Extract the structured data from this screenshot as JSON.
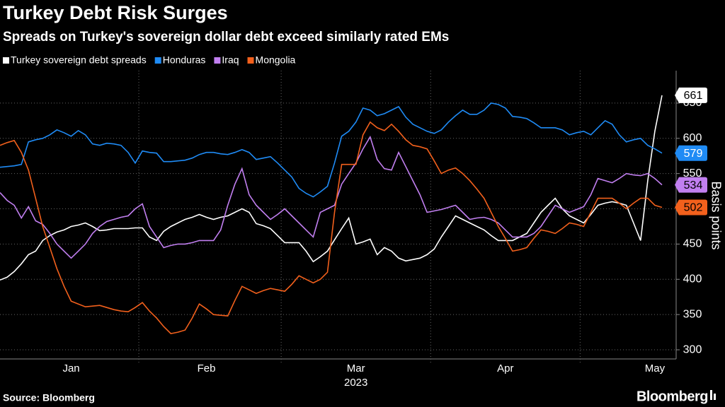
{
  "chart_data": {
    "type": "line",
    "title": "Turkey Debt Risk Surges",
    "subtitle": "Spreads on Turkey's sovereign dollar debt exceed similarly rated EMs",
    "y_axis_label": "Basis points",
    "x_sublabel": "2023",
    "source": "Source: Bloomberg",
    "brand": "Bloomberg",
    "categories": [
      null,
      null,
      null,
      null,
      null,
      null,
      null,
      null,
      null,
      null,
      "Jan",
      null,
      null,
      null,
      null,
      null,
      null,
      null,
      null,
      null,
      null,
      null,
      null,
      null,
      null,
      null,
      null,
      null,
      null,
      "Feb",
      null,
      null,
      null,
      null,
      null,
      null,
      null,
      null,
      null,
      null,
      null,
      null,
      null,
      null,
      null,
      null,
      null,
      null,
      null,
      null,
      "Mar",
      null,
      null,
      null,
      null,
      null,
      null,
      null,
      null,
      null,
      null,
      null,
      null,
      null,
      null,
      null,
      null,
      null,
      null,
      null,
      null,
      "Apr",
      null,
      null,
      null,
      null,
      null,
      null,
      null,
      null,
      null,
      null,
      null,
      null,
      null,
      null,
      null,
      null,
      null,
      null,
      null,
      null,
      "May",
      null
    ],
    "series": [
      {
        "name": "Turkey sovereign debt spreads",
        "color": "#ffffff",
        "label_text_color": "#000000",
        "values": [
          399,
          403,
          411,
          422,
          435,
          440,
          455,
          462,
          467,
          470,
          475,
          477,
          480,
          475,
          469,
          470,
          472,
          472,
          472,
          473,
          473,
          460,
          455,
          468,
          475,
          480,
          485,
          488,
          492,
          488,
          485,
          488,
          490,
          495,
          500,
          495,
          479,
          476,
          472,
          462,
          452,
          452,
          452,
          440,
          425,
          432,
          440,
          456,
          472,
          487,
          450,
          453,
          457,
          435,
          445,
          440,
          430,
          426,
          428,
          430,
          435,
          443,
          460,
          475,
          490,
          485,
          480,
          475,
          470,
          462,
          455,
          455,
          455,
          460,
          465,
          480,
          495,
          505,
          515,
          500,
          490,
          485,
          480,
          492,
          505,
          508,
          510,
          508,
          505,
          480,
          455,
          540,
          610,
          661
        ]
      },
      {
        "name": "Honduras",
        "color": "#1f8bf5",
        "label_text_color": "#ffffff",
        "values": [
          559,
          560,
          561,
          563,
          595,
          598,
          600,
          605,
          612,
          608,
          603,
          611,
          605,
          592,
          590,
          593,
          592,
          590,
          580,
          565,
          582,
          580,
          579,
          567,
          567,
          568,
          569,
          572,
          577,
          580,
          580,
          578,
          577,
          580,
          584,
          580,
          570,
          572,
          574,
          565,
          555,
          545,
          529,
          522,
          517,
          524,
          532,
          565,
          603,
          610,
          623,
          643,
          640,
          632,
          635,
          640,
          645,
          630,
          620,
          615,
          610,
          607,
          612,
          623,
          632,
          640,
          634,
          634,
          640,
          650,
          648,
          643,
          631,
          630,
          628,
          622,
          615,
          615,
          615,
          612,
          605,
          608,
          610,
          605,
          615,
          625,
          620,
          605,
          595,
          598,
          600,
          590,
          585,
          579
        ]
      },
      {
        "name": "Iraq",
        "color": "#c17ff0",
        "label_text_color": "#000000",
        "values": [
          523,
          512,
          505,
          487,
          503,
          483,
          478,
          465,
          450,
          440,
          430,
          440,
          450,
          465,
          475,
          482,
          485,
          488,
          490,
          500,
          507,
          475,
          460,
          445,
          448,
          450,
          450,
          452,
          455,
          455,
          455,
          470,
          505,
          535,
          557,
          520,
          505,
          495,
          485,
          492,
          500,
          490,
          480,
          470,
          460,
          495,
          500,
          505,
          535,
          550,
          565,
          585,
          602,
          570,
          557,
          555,
          580,
          560,
          540,
          520,
          495,
          497,
          499,
          502,
          505,
          495,
          485,
          487,
          488,
          485,
          480,
          470,
          460,
          460,
          460,
          465,
          475,
          490,
          505,
          500,
          495,
          499,
          503,
          520,
          543,
          540,
          537,
          543,
          550,
          548,
          547,
          550,
          543,
          534
        ]
      },
      {
        "name": "Mongolia",
        "color": "#f2601c",
        "label_text_color": "#000000",
        "values": [
          590,
          594,
          597,
          580,
          555,
          515,
          475,
          445,
          415,
          390,
          369,
          365,
          361,
          362,
          363,
          360,
          357,
          355,
          354,
          360,
          367,
          355,
          345,
          333,
          323,
          325,
          328,
          345,
          365,
          358,
          350,
          349,
          348,
          370,
          390,
          385,
          380,
          384,
          387,
          385,
          383,
          393,
          405,
          400,
          395,
          400,
          410,
          495,
          563,
          563,
          563,
          605,
          623,
          615,
          611,
          620,
          610,
          598,
          590,
          588,
          585,
          568,
          550,
          555,
          558,
          550,
          540,
          528,
          515,
          495,
          475,
          458,
          440,
          442,
          445,
          458,
          470,
          468,
          465,
          472,
          480,
          478,
          475,
          495,
          515,
          515,
          515,
          508,
          500,
          508,
          515,
          515,
          505,
          502
        ]
      }
    ],
    "ylim": [
      287,
      696
    ],
    "yticks": [
      300,
      350,
      400,
      450,
      500,
      550,
      600,
      650
    ],
    "grid": true,
    "background": "#000000"
  }
}
